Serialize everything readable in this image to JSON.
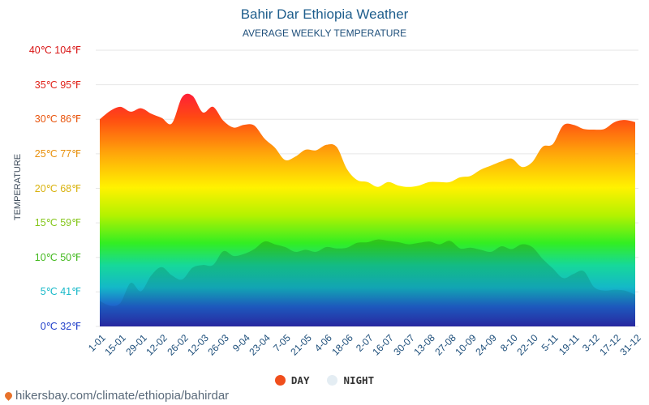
{
  "title": "Bahir Dar Ethiopia Weather",
  "subtitle": "AVERAGE WEEKLY TEMPERATURE",
  "source": "hikersbay.com/climate/ethiopia/bahirdar",
  "colors": {
    "day_legend": "#f04e1c",
    "night_legend": "#e4edf3",
    "title": "#1d5d8c"
  },
  "chart_data": {
    "type": "area",
    "title": "Bahir Dar Ethiopia Weather",
    "subtitle": "AVERAGE WEEKLY TEMPERATURE",
    "ylabel": "TEMPERATURE",
    "xlabel": "",
    "ylim": [
      0,
      40
    ],
    "y_ticks": [
      {
        "value": 0,
        "label": "0℃ 32℉",
        "color": "#1f3ec9"
      },
      {
        "value": 5,
        "label": "5℃ 41℉",
        "color": "#19b9c9"
      },
      {
        "value": 10,
        "label": "10℃ 50℉",
        "color": "#43b91f"
      },
      {
        "value": 15,
        "label": "15℃ 59℉",
        "color": "#84c61a"
      },
      {
        "value": 20,
        "label": "20℃ 68℉",
        "color": "#d9b30f"
      },
      {
        "value": 25,
        "label": "25℃ 77℉",
        "color": "#e8900c"
      },
      {
        "value": 30,
        "label": "30℃ 86℉",
        "color": "#e8540c"
      },
      {
        "value": 35,
        "label": "35℃ 95℉",
        "color": "#e0231a"
      },
      {
        "value": 40,
        "label": "40℃ 104℉",
        "color": "#d91616"
      }
    ],
    "x_labels": [
      "1-01",
      "15-01",
      "29-01",
      "12-02",
      "26-02",
      "12-03",
      "26-03",
      "9-04",
      "23-04",
      "7-05",
      "21-05",
      "4-06",
      "18-06",
      "2-07",
      "16-07",
      "30-07",
      "13-08",
      "27-08",
      "10-09",
      "24-09",
      "8-10",
      "22-10",
      "5-11",
      "19-11",
      "3-12",
      "17-12",
      "31-12"
    ],
    "grid": true,
    "legend_position": "bottom",
    "legend": [
      {
        "label": "DAY"
      },
      {
        "label": "NIGHT"
      }
    ],
    "series": [
      {
        "name": "DAY",
        "values": [
          30.0,
          31.2,
          31.8,
          31.1,
          31.6,
          30.8,
          30.2,
          29.4,
          33.2,
          33.4,
          31.0,
          31.8,
          29.8,
          28.8,
          29.2,
          29.1,
          27.2,
          25.9,
          24.1,
          24.6,
          25.6,
          25.5,
          26.3,
          26.0,
          22.8,
          21.2,
          20.9,
          20.2,
          20.9,
          20.4,
          20.2,
          20.4,
          20.9,
          20.9,
          20.9,
          21.6,
          21.8,
          22.7,
          23.3,
          23.9,
          24.3,
          23.1,
          23.8,
          26.0,
          26.4,
          29.1,
          29.2,
          28.6,
          28.5,
          28.6,
          29.6,
          29.9,
          29.6
        ]
      },
      {
        "name": "NIGHT",
        "values": [
          3.7,
          3.0,
          3.4,
          6.3,
          5.1,
          7.4,
          8.6,
          7.4,
          6.8,
          8.5,
          8.9,
          8.9,
          10.9,
          10.2,
          10.5,
          11.2,
          12.3,
          11.9,
          11.5,
          10.8,
          11.1,
          10.8,
          11.5,
          11.3,
          11.4,
          12.1,
          12.2,
          12.6,
          12.4,
          12.2,
          11.9,
          12.1,
          12.3,
          11.9,
          12.4,
          11.3,
          11.4,
          11.1,
          10.8,
          11.6,
          11.2,
          11.9,
          11.5,
          9.8,
          8.4,
          7.0,
          7.6,
          8.0,
          5.7,
          5.2,
          5.3,
          5.2,
          4.6
        ]
      }
    ]
  }
}
